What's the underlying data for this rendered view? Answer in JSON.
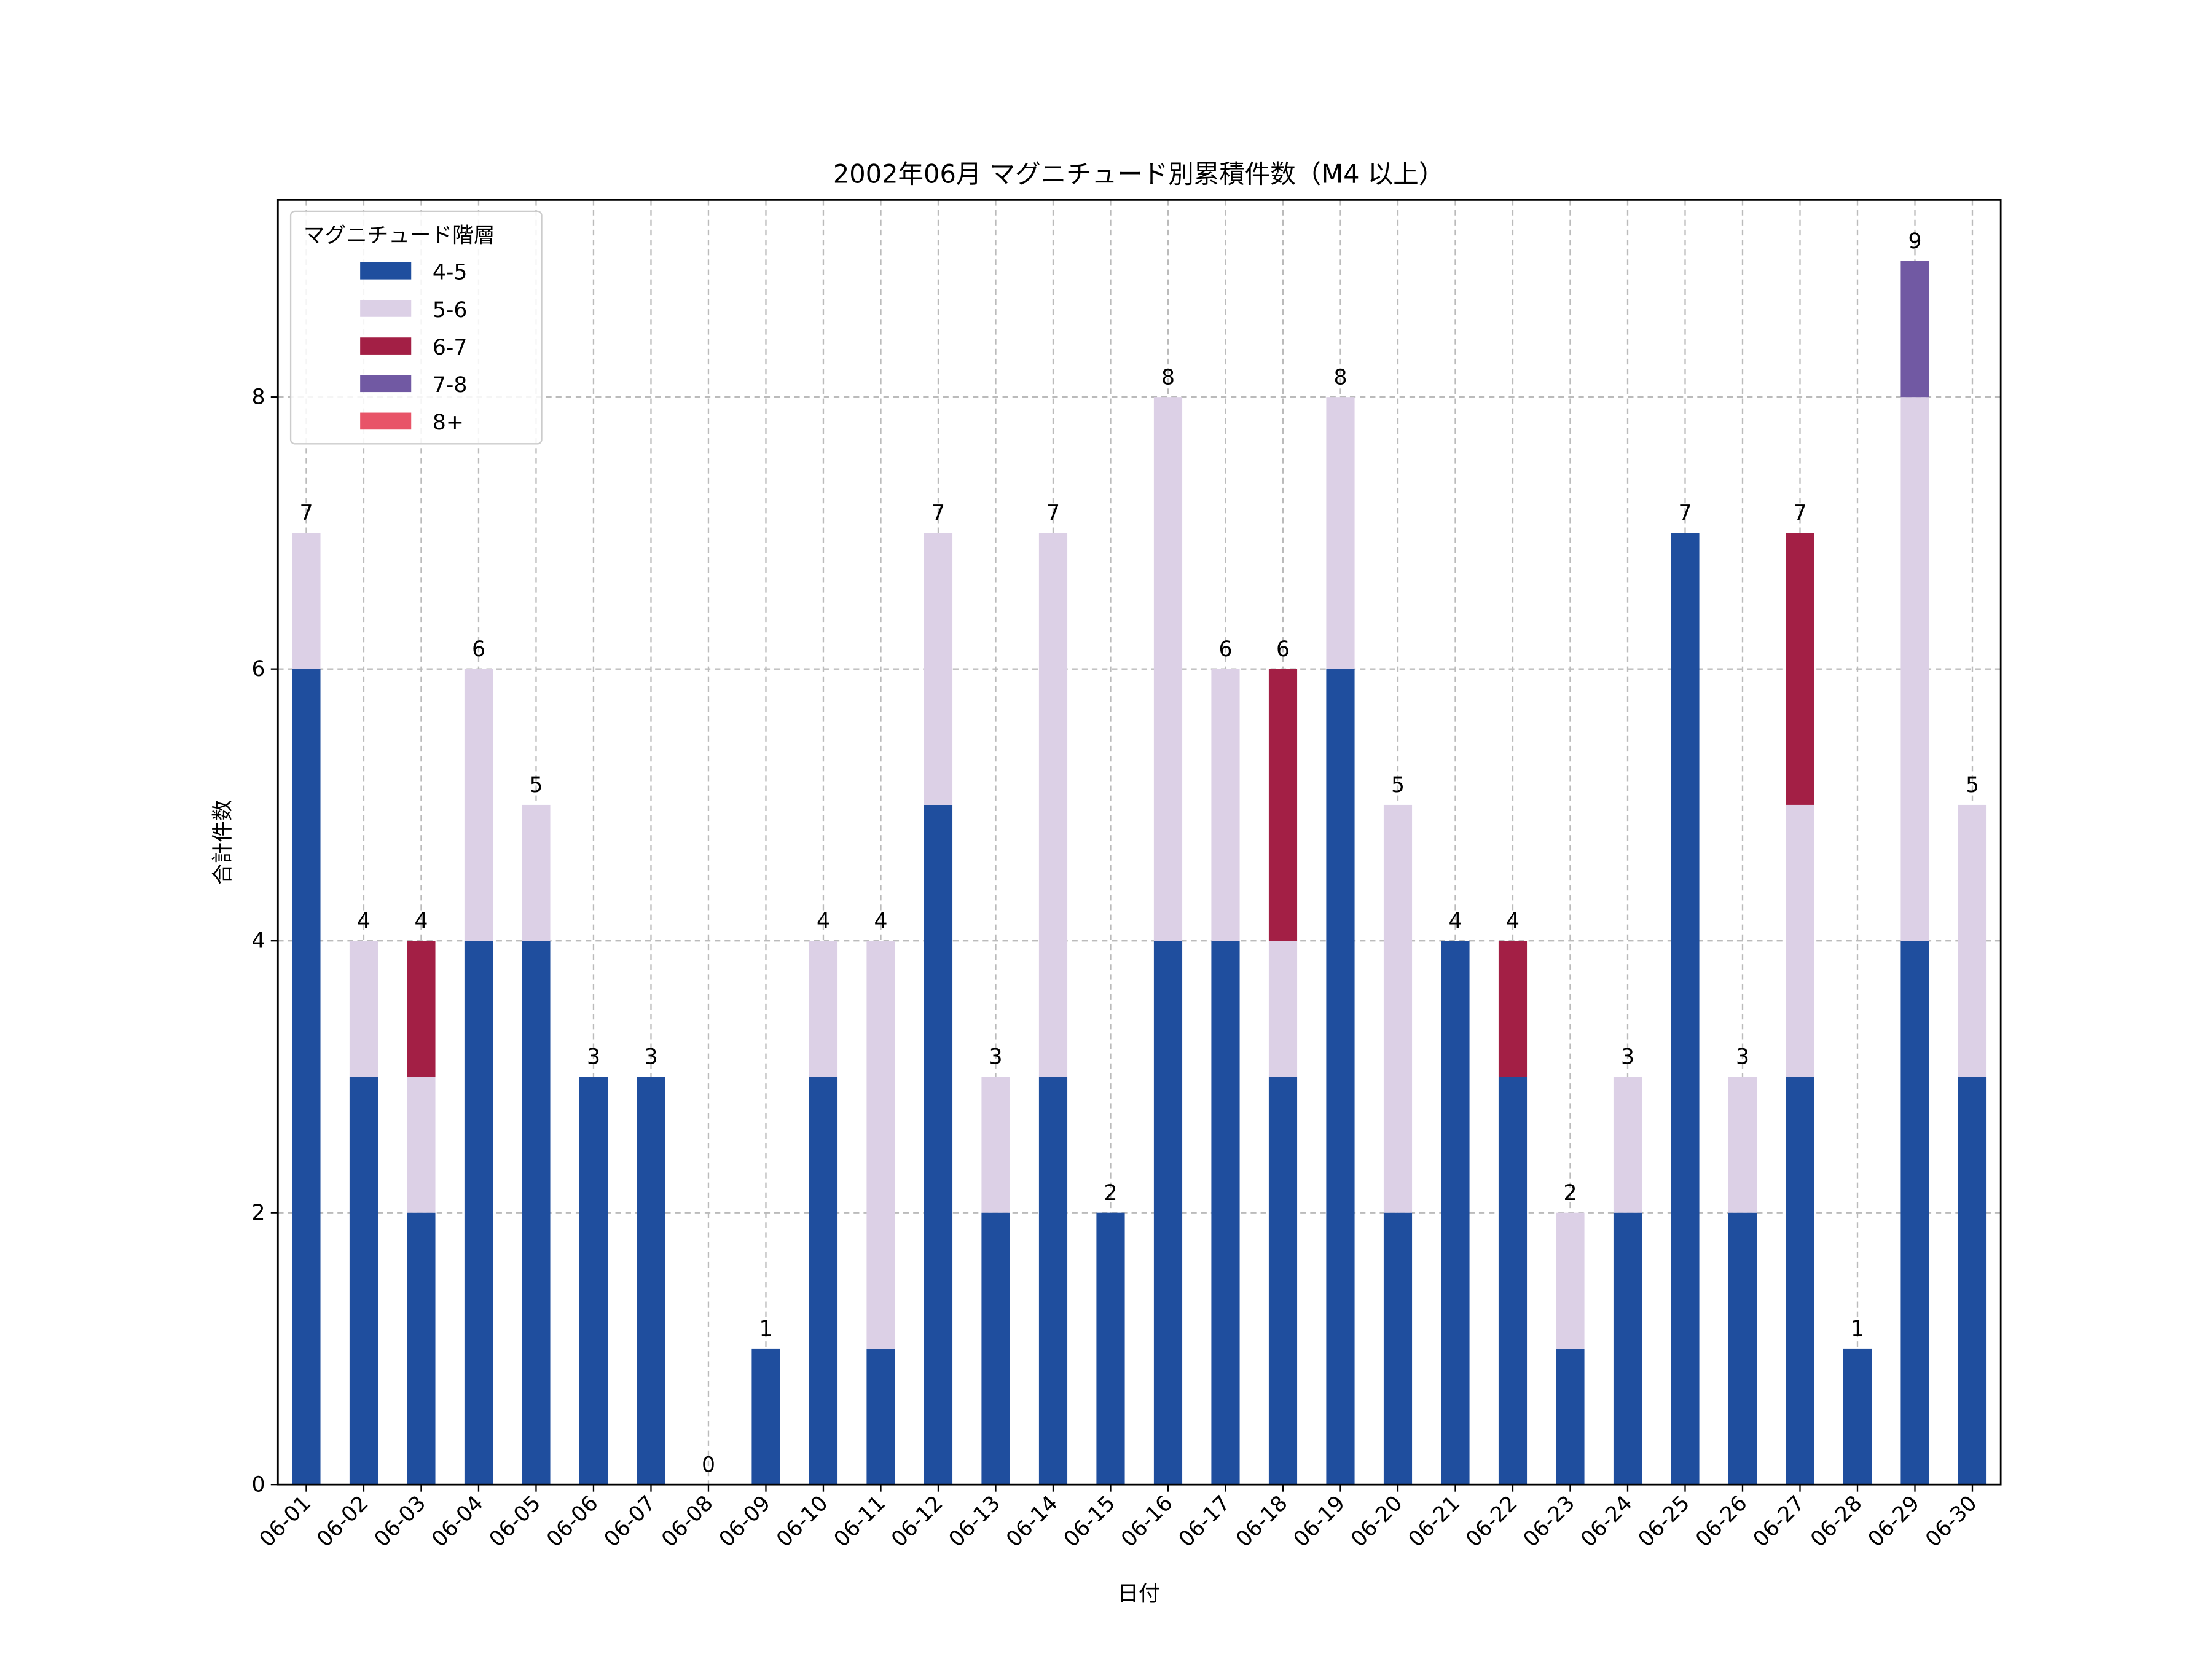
{
  "chart_data": {
    "type": "bar",
    "stacked": true,
    "title": "2002年06月 マグニチュード別累積件数（M4 以上）",
    "xlabel": "日付",
    "ylabel": "合計件数",
    "ylim": [
      0,
      9.45
    ],
    "yticks": [
      0,
      2,
      4,
      6,
      8
    ],
    "grid": true,
    "legend": {
      "title": "マグニチュード階層",
      "placement": "top-left"
    },
    "categories": [
      "06-01",
      "06-02",
      "06-03",
      "06-04",
      "06-05",
      "06-06",
      "06-07",
      "06-08",
      "06-09",
      "06-10",
      "06-11",
      "06-12",
      "06-13",
      "06-14",
      "06-15",
      "06-16",
      "06-17",
      "06-18",
      "06-19",
      "06-20",
      "06-21",
      "06-22",
      "06-23",
      "06-24",
      "06-25",
      "06-26",
      "06-27",
      "06-28",
      "06-29",
      "06-30"
    ],
    "series": [
      {
        "name": "4-5",
        "color": "#1f4e9e",
        "values": [
          6,
          3,
          2,
          4,
          4,
          3,
          3,
          0,
          1,
          3,
          1,
          5,
          2,
          3,
          2,
          4,
          4,
          3,
          6,
          2,
          4,
          3,
          1,
          2,
          7,
          2,
          3,
          1,
          4,
          3
        ]
      },
      {
        "name": "5-6",
        "color": "#dcd0e6",
        "values": [
          1,
          1,
          1,
          2,
          1,
          0,
          0,
          0,
          0,
          1,
          3,
          2,
          1,
          4,
          0,
          4,
          2,
          1,
          2,
          3,
          0,
          0,
          1,
          1,
          0,
          1,
          2,
          0,
          4,
          2
        ]
      },
      {
        "name": "6-7",
        "color": "#a31f45",
        "values": [
          0,
          0,
          1,
          0,
          0,
          0,
          0,
          0,
          0,
          0,
          0,
          0,
          0,
          0,
          0,
          0,
          0,
          2,
          0,
          0,
          0,
          1,
          0,
          0,
          0,
          0,
          2,
          0,
          0,
          0
        ]
      },
      {
        "name": "7-8",
        "color": "#7159a3",
        "values": [
          0,
          0,
          0,
          0,
          0,
          0,
          0,
          0,
          0,
          0,
          0,
          0,
          0,
          0,
          0,
          0,
          0,
          0,
          0,
          0,
          0,
          0,
          0,
          0,
          0,
          0,
          0,
          0,
          1,
          0
        ]
      },
      {
        "name": "8+",
        "color": "#e85468",
        "values": [
          0,
          0,
          0,
          0,
          0,
          0,
          0,
          0,
          0,
          0,
          0,
          0,
          0,
          0,
          0,
          0,
          0,
          0,
          0,
          0,
          0,
          0,
          0,
          0,
          0,
          0,
          0,
          0,
          0,
          0
        ]
      }
    ],
    "totals": [
      7,
      4,
      4,
      6,
      5,
      3,
      3,
      0,
      1,
      4,
      4,
      7,
      3,
      7,
      2,
      8,
      6,
      6,
      8,
      5,
      4,
      4,
      2,
      3,
      7,
      3,
      7,
      1,
      9,
      5
    ]
  }
}
